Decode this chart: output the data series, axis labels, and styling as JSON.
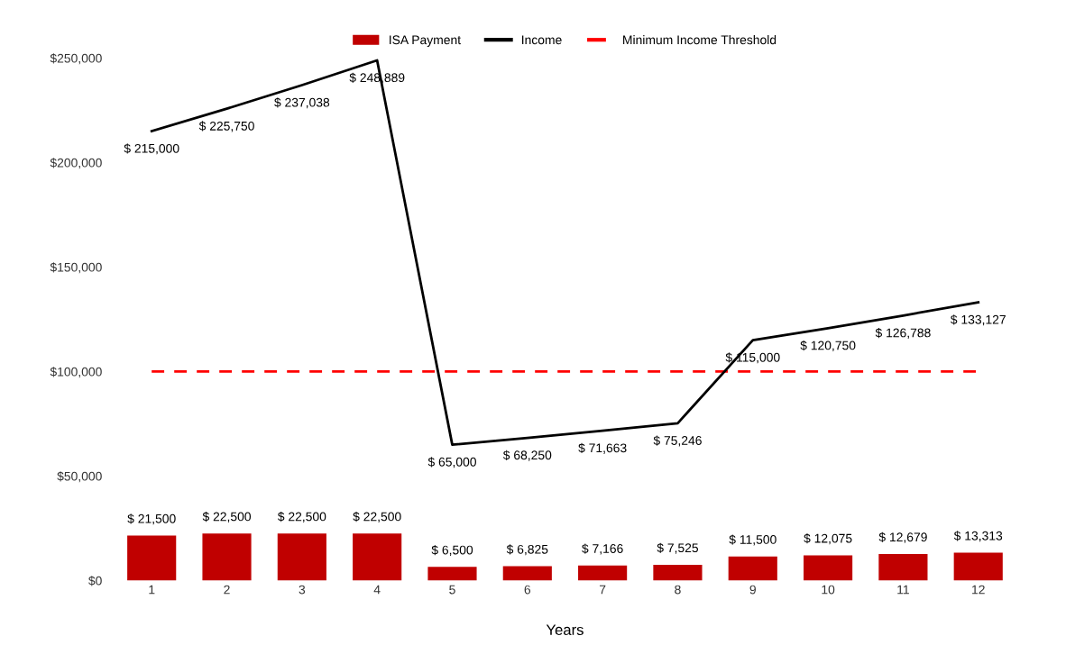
{
  "chart_data": {
    "type": "bar",
    "xlabel": "Years",
    "categories": [
      "1",
      "2",
      "3",
      "4",
      "5",
      "6",
      "7",
      "8",
      "9",
      "10",
      "11",
      "12"
    ],
    "series": [
      {
        "name": "ISA Payment",
        "color": "#c00000",
        "values": [
          21500,
          22500,
          22500,
          22500,
          6500,
          6825,
          7166,
          7525,
          11500,
          12075,
          12679,
          13313
        ],
        "value_labels": [
          "$ 21,500",
          "$ 22,500",
          "$ 22,500",
          "$ 22,500",
          "$ 6,500",
          "$ 6,825",
          "$ 7,166",
          "$ 7,525",
          "$ 11,500",
          "$ 12,075",
          "$ 12,679",
          "$ 13,313"
        ]
      },
      {
        "name": "Income",
        "type": "line",
        "color": "#000000",
        "values": [
          215000,
          225750,
          237038,
          248889,
          65000,
          68250,
          71663,
          75246,
          115000,
          120750,
          126788,
          133127
        ],
        "value_labels": [
          "$ 215,000",
          "$ 225,750",
          "$ 237,038",
          "$ 248,889",
          "$ 65,000",
          "$ 68,250",
          "$ 71,663",
          "$ 75,246",
          "$ 115,000",
          "$ 120,750",
          "$ 126,788",
          "$ 133,127"
        ]
      }
    ],
    "ref_lines": [
      {
        "axis": "y",
        "value": 100000,
        "label": "Minimum Income Threshold",
        "color": "#ff0000",
        "line_style": "dashed"
      }
    ],
    "ylim": [
      0,
      250000
    ],
    "yticks": [
      {
        "value": 0,
        "label": "$0"
      },
      {
        "value": 50000,
        "label": "$50,000"
      },
      {
        "value": 100000,
        "label": "$100,000"
      },
      {
        "value": 150000,
        "label": "$150,000"
      },
      {
        "value": 200000,
        "label": "$200,000"
      },
      {
        "value": 250000,
        "label": "$250,000"
      }
    ],
    "grid": false,
    "legend": "top",
    "marker": "none",
    "line_style": "solid"
  }
}
